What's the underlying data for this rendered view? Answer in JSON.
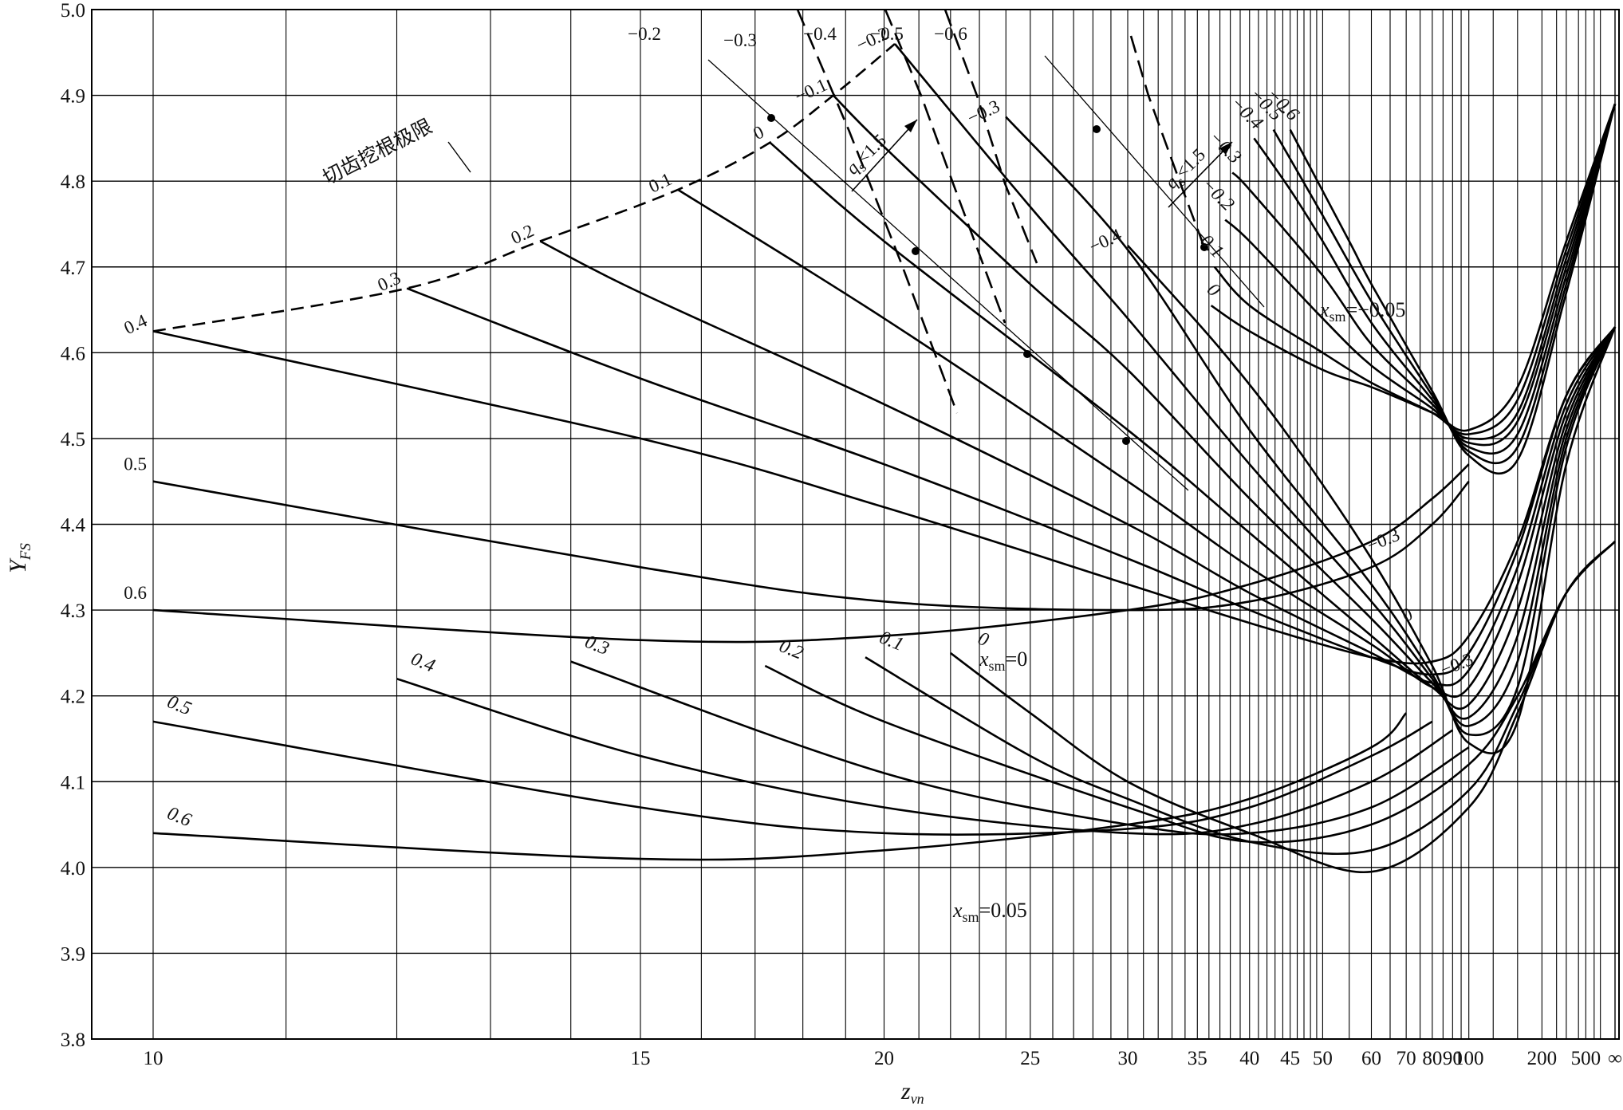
{
  "chart_data": {
    "type": "line",
    "xlabel": "z",
    "xlabel_sub": "vn",
    "ylabel": "Y",
    "ylabel_sub": "FS",
    "x_scale": "reciprocal",
    "ylim": [
      3.8,
      5.0
    ],
    "grid": true,
    "y_ticks": [
      "3.8",
      "3.9",
      "4.0",
      "4.1",
      "4.2",
      "4.3",
      "4.4",
      "4.5",
      "4.6",
      "4.7",
      "4.8",
      "4.9",
      "5.0"
    ],
    "x_tick_values": [
      10,
      15,
      20,
      25,
      30,
      35,
      40,
      45,
      50,
      60,
      70,
      80,
      90,
      100,
      200,
      500,
      "∞"
    ],
    "x_ticks": [
      "10",
      "15",
      "20",
      "25",
      "30",
      "35",
      "40",
      "45",
      "50",
      "60",
      "70",
      "80",
      "90",
      "100",
      "200",
      "500",
      "∞"
    ],
    "families": [
      {
        "label": "x_sm=−0.05",
        "label_main": "x",
        "label_sub": "sm",
        "label_value": "=−0.05",
        "series": [
          {
            "name": "0.4",
            "x": [
              10,
              15,
              20,
              30,
              40,
              60,
              80,
              100,
              150,
              300,
              "∞"
            ],
            "y": [
              4.625,
              4.5,
              4.42,
              4.33,
              4.285,
              4.245,
              4.24,
              4.27,
              4.38,
              4.55,
              4.63
            ]
          },
          {
            "name": "0.3",
            "x": [
              12.1,
              15,
              20,
              30,
              40,
              60,
              80,
              100,
              150,
              300,
              "∞"
            ],
            "y": [
              4.675,
              4.57,
              4.47,
              4.36,
              4.3,
              4.245,
              4.225,
              4.25,
              4.37,
              4.55,
              4.63
            ]
          },
          {
            "name": "0.2",
            "x": [
              13.6,
              15,
              20,
              30,
              40,
              60,
              80,
              100,
              150,
              300,
              "∞"
            ],
            "y": [
              4.73,
              4.67,
              4.54,
              4.4,
              4.32,
              4.25,
              4.215,
              4.23,
              4.35,
              4.54,
              4.63
            ]
          },
          {
            "name": "0.1",
            "x": [
              15.6,
              20,
              30,
              40,
              60,
              80,
              100,
              150,
              300,
              "∞"
            ],
            "y": [
              4.79,
              4.64,
              4.45,
              4.35,
              4.26,
              4.21,
              4.21,
              4.33,
              4.53,
              4.63
            ]
          },
          {
            "name": "0",
            "x": [
              17.3,
              20,
              30,
              40,
              60,
              80,
              100,
              150,
              300,
              "∞"
            ],
            "y": [
              4.845,
              4.73,
              4.51,
              4.39,
              4.27,
              4.21,
              4.19,
              4.3,
              4.52,
              4.63
            ]
          },
          {
            "name": "−0.1",
            "x": [
              18.7,
              20,
              25,
              30,
              40,
              60,
              80,
              100,
              150,
              300,
              "∞"
            ],
            "y": [
              4.9,
              4.84,
              4.68,
              4.58,
              4.43,
              4.29,
              4.215,
              4.175,
              4.27,
              4.51,
              4.63
            ]
          },
          {
            "name": "−0.2",
            "x": [
              20.3,
              25,
              30,
              40,
              60,
              80,
              100,
              150,
              300,
              "∞"
            ],
            "y": [
              4.96,
              4.77,
              4.64,
              4.47,
              4.31,
              4.22,
              4.165,
              4.24,
              4.5,
              4.63
            ]
          },
          {
            "name": "−0.3",
            "x": [
              24,
              30,
              40,
              60,
              80,
              100,
              150,
              300,
              "∞"
            ],
            "y": [
              4.875,
              4.72,
              4.51,
              4.33,
              4.225,
              4.155,
              4.21,
              4.49,
              4.63
            ]
          },
          {
            "name": "−0.4",
            "x": [
              30,
              37,
              45,
              60,
              80,
              100,
              150,
              300,
              "∞"
            ],
            "y": [
              4.725,
              4.605,
              4.5,
              4.36,
              4.235,
              4.145,
              4.17,
              4.47,
              4.63
            ]
          }
        ],
        "upper_series": [
          {
            "name": "0",
            "x": [
              36.2,
              40,
              50,
              60,
              80,
              100,
              150,
              300,
              "∞"
            ],
            "y": [
              4.655,
              4.625,
              4.58,
              4.56,
              4.53,
              4.51,
              4.56,
              4.73,
              4.89
            ]
          },
          {
            "name": "−0.1",
            "x": [
              36.5,
              40,
              50,
              60,
              80,
              100,
              150,
              300,
              "∞"
            ],
            "y": [
              4.7,
              4.655,
              4.6,
              4.565,
              4.53,
              4.505,
              4.545,
              4.72,
              4.89
            ]
          },
          {
            "name": "−0.2",
            "x": [
              37.5,
              40,
              50,
              60,
              80,
              100,
              150,
              300,
              "∞"
            ],
            "y": [
              4.755,
              4.73,
              4.64,
              4.585,
              4.535,
              4.5,
              4.53,
              4.71,
              4.89
            ]
          },
          {
            "name": "−0.3",
            "x": [
              38.2,
              40,
              50,
              60,
              80,
              100,
              150,
              300,
              "∞"
            ],
            "y": [
              4.81,
              4.79,
              4.69,
              4.61,
              4.54,
              4.495,
              4.52,
              4.7,
              4.89
            ]
          },
          {
            "name": "−0.4",
            "x": [
              40.5,
              45,
              50,
              60,
              80,
              100,
              150,
              300,
              "∞"
            ],
            "y": [
              4.85,
              4.79,
              4.73,
              4.635,
              4.545,
              4.49,
              4.505,
              4.69,
              4.89
            ]
          },
          {
            "name": "−0.5",
            "x": [
              42.8,
              50,
              60,
              80,
              100,
              150,
              300,
              "∞"
            ],
            "y": [
              4.86,
              4.76,
              4.66,
              4.55,
              4.485,
              4.49,
              4.68,
              4.89
            ]
          },
          {
            "name": "−0.6",
            "x": [
              45,
              55,
              60,
              80,
              100,
              150,
              300,
              "∞"
            ],
            "y": [
              4.86,
              4.73,
              4.68,
              4.555,
              4.48,
              4.475,
              4.67,
              4.89
            ]
          }
        ]
      },
      {
        "label": "x_sm=0",
        "label_main": "x",
        "label_sub": "sm",
        "label_value": "=0",
        "series": [
          {
            "name": "0.5",
            "x": [
              10,
              15,
              20,
              30,
              40,
              60,
              80,
              100
            ],
            "y": [
              4.45,
              4.35,
              4.31,
              4.3,
              4.31,
              4.35,
              4.4,
              4.45
            ]
          },
          {
            "name": "0.6",
            "x": [
              10,
              15,
              20,
              30,
              40,
              60,
              80,
              100
            ],
            "y": [
              4.3,
              4.265,
              4.27,
              4.3,
              4.33,
              4.38,
              4.43,
              4.47
            ]
          }
        ],
        "right_labels": [
          "−0.3",
          "0",
          "−0.3"
        ]
      },
      {
        "label": "x_sm=0.05",
        "label_main": "x",
        "label_sub": "sm",
        "label_value": "=0.05",
        "series": [
          {
            "name": "0.6",
            "x": [
              10,
              15,
              20,
              30,
              40,
              60,
              70
            ],
            "y": [
              4.04,
              4.01,
              4.02,
              4.05,
              4.08,
              4.14,
              4.18
            ]
          },
          {
            "name": "0.5",
            "x": [
              10,
              15,
              20,
              30,
              40,
              60,
              80
            ],
            "y": [
              4.17,
              4.07,
              4.04,
              4.045,
              4.07,
              4.13,
              4.17
            ]
          },
          {
            "name": "0.4",
            "x": [
              12,
              15,
              20,
              30,
              40,
              60,
              90
            ],
            "y": [
              4.22,
              4.13,
              4.07,
              4.04,
              4.05,
              4.1,
              4.16
            ]
          },
          {
            "name": "0.3",
            "x": [
              14,
              20,
              30,
              40,
              60,
              100
            ],
            "y": [
              4.24,
              4.11,
              4.05,
              4.04,
              4.07,
              4.14
            ]
          },
          {
            "name": "0.2",
            "x": [
              17.2,
              20,
              30,
              40,
              60,
              100,
              150,
              300,
              "∞"
            ],
            "y": [
              4.235,
              4.17,
              4.07,
              4.03,
              4.05,
              4.12,
              4.2,
              4.32,
              4.38
            ]
          },
          {
            "name": "0.1",
            "x": [
              19.5,
              25,
              30,
              40,
              60,
              100,
              150,
              300,
              "∞"
            ],
            "y": [
              4.245,
              4.13,
              4.08,
              4.03,
              4.02,
              4.09,
              4.19,
              4.32,
              4.38
            ]
          },
          {
            "name": "0",
            "x": [
              22,
              25,
              30,
              40,
              60,
              100,
              150,
              300,
              "∞"
            ],
            "y": [
              4.25,
              4.18,
              4.1,
              4.04,
              3.995,
              4.07,
              4.18,
              4.32,
              4.38
            ]
          }
        ]
      }
    ],
    "undercut_limit": {
      "name": "切齿挖根极限",
      "x": [
        10,
        12.1,
        13.6,
        15.6,
        17.3,
        18.7,
        20.3
      ],
      "y": [
        4.625,
        4.675,
        4.73,
        4.79,
        4.845,
        4.9,
        4.96
      ]
    },
    "annotations": [
      {
        "text": "q_s<1.5",
        "main": "q",
        "sub": "s",
        "rest": "<1.5"
      },
      {
        "text": "q_s<1.5",
        "main": "q",
        "sub": "s",
        "rest": "<1.5"
      }
    ],
    "top_labels": [
      "−0.2",
      "−0.3",
      "−0.4",
      "−0.5",
      "−0.6"
    ]
  }
}
